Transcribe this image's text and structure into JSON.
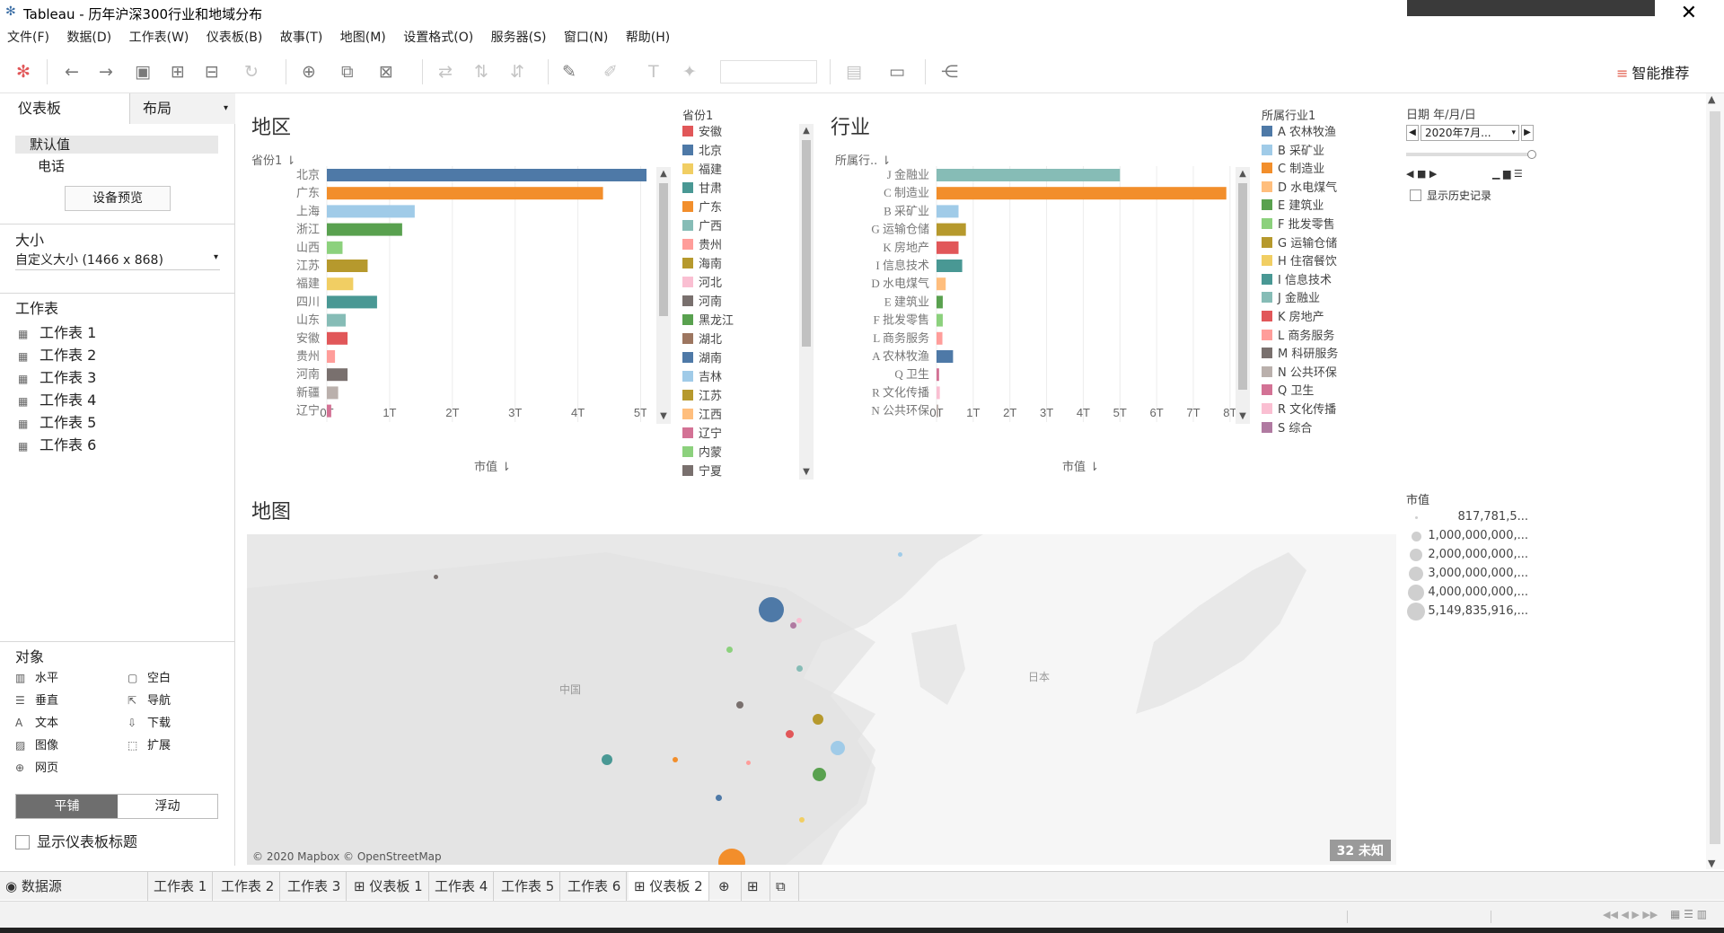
{
  "window": {
    "title": "Tableau - 历年沪深300行业和地域分布",
    "close": "✕"
  },
  "menu": [
    "文件(F)",
    "数据(D)",
    "工作表(W)",
    "仪表板(B)",
    "故事(T)",
    "地图(M)",
    "设置格式(O)",
    "服务器(S)",
    "窗口(N)",
    "帮助(H)"
  ],
  "toolbar": {
    "smart_label": "智能推荐"
  },
  "left": {
    "tab_dashboard": "仪表板",
    "tab_layout": "布局",
    "device_default": "默认值",
    "device_phone": "电话",
    "device_preview": "设备预览",
    "size_title": "大小",
    "size_value": "自定义大小 (1466 x 868)",
    "sheets_title": "工作表",
    "sheets": [
      "工作表 1",
      "工作表 2",
      "工作表 3",
      "工作表 4",
      "工作表 5",
      "工作表 6"
    ],
    "objects_title": "对象",
    "objects": [
      {
        "icon": "▥",
        "label": "水平"
      },
      {
        "icon": "▢",
        "label": "空白"
      },
      {
        "icon": "☰",
        "label": "垂直"
      },
      {
        "icon": "⇱",
        "label": "导航"
      },
      {
        "icon": "A",
        "label": "文本"
      },
      {
        "icon": "⇩",
        "label": "下载"
      },
      {
        "icon": "▨",
        "label": "图像"
      },
      {
        "icon": "⬚",
        "label": "扩展"
      },
      {
        "icon": "⊕",
        "label": "网页"
      }
    ],
    "tiled": "平铺",
    "floating": "浮动",
    "show_title": "显示仪表板标题"
  },
  "region": {
    "title": "地区",
    "axis_cat": "省份1",
    "axis_val": "市值",
    "legend_title": "省份1",
    "ticks": [
      "0T",
      "1T",
      "2T",
      "3T",
      "4T",
      "5T"
    ]
  },
  "industry": {
    "title": "行业",
    "axis_cat": "所属行..",
    "axis_val": "市值",
    "legend_title": "所属行业1",
    "ticks": [
      "0T",
      "1T",
      "2T",
      "3T",
      "4T",
      "5T",
      "6T",
      "7T",
      "8T"
    ]
  },
  "chart_data": [
    {
      "type": "bar",
      "title": "地区",
      "xlabel": "市值",
      "ylabel": "省份1",
      "xlim": [
        0,
        5.15
      ],
      "categories": [
        "北京",
        "广东",
        "上海",
        "浙江",
        "山西",
        "江苏",
        "福建",
        "四川",
        "山东",
        "安徽",
        "贵州",
        "河南",
        "新疆",
        "辽宁"
      ],
      "values": [
        5.15,
        4.4,
        1.4,
        1.2,
        0.25,
        0.65,
        0.42,
        0.8,
        0.3,
        0.33,
        0.13,
        0.33,
        0.18,
        0.07
      ],
      "colors": [
        "#4e79a7",
        "#f28e2b",
        "#a0cbe8",
        "#59a14f",
        "#8cd17d",
        "#b6992d",
        "#f1ce63",
        "#499894",
        "#86bcb6",
        "#e15759",
        "#ff9d9a",
        "#79706e",
        "#bab0ac",
        "#d37295"
      ]
    },
    {
      "type": "bar",
      "title": "行业",
      "xlabel": "市值",
      "ylabel": "所属行..",
      "xlim": [
        0,
        8.2
      ],
      "categories": [
        "J 金融业",
        "C 制造业",
        "B 采矿业",
        "G 运输仓储",
        "K 房地产",
        "I 信息技术",
        "D 水电煤气",
        "E 建筑业",
        "F 批发零售",
        "L 商务服务",
        "A 农林牧渔",
        "Q 卫生",
        "R 文化传播",
        "N 公共环保"
      ],
      "values": [
        5.0,
        7.9,
        0.6,
        0.8,
        0.6,
        0.7,
        0.25,
        0.17,
        0.17,
        0.16,
        0.45,
        0.07,
        0.09,
        0.03
      ],
      "colors": [
        "#86bcb6",
        "#f28e2b",
        "#a0cbe8",
        "#b6992d",
        "#e15759",
        "#499894",
        "#ffbe7d",
        "#59a14f",
        "#8cd17d",
        "#ff9d9a",
        "#4e79a7",
        "#d37295",
        "#fabfd2",
        "#bab0ac"
      ]
    }
  ],
  "region_legend": [
    {
      "label": "安徽",
      "color": "#e15759"
    },
    {
      "label": "北京",
      "color": "#4e79a7"
    },
    {
      "label": "福建",
      "color": "#f1ce63"
    },
    {
      "label": "甘肃",
      "color": "#499894"
    },
    {
      "label": "广东",
      "color": "#f28e2b"
    },
    {
      "label": "广西",
      "color": "#86bcb6"
    },
    {
      "label": "贵州",
      "color": "#ff9d9a"
    },
    {
      "label": "海南",
      "color": "#b6992d"
    },
    {
      "label": "河北",
      "color": "#fabfd2"
    },
    {
      "label": "河南",
      "color": "#79706e"
    },
    {
      "label": "黑龙江",
      "color": "#59a14f"
    },
    {
      "label": "湖北",
      "color": "#9d7660"
    },
    {
      "label": "湖南",
      "color": "#4e79a7"
    },
    {
      "label": "吉林",
      "color": "#a0cbe8"
    },
    {
      "label": "江苏",
      "color": "#b6992d"
    },
    {
      "label": "江西",
      "color": "#ffbe7d"
    },
    {
      "label": "辽宁",
      "color": "#d37295"
    },
    {
      "label": "内蒙",
      "color": "#8cd17d"
    },
    {
      "label": "宁夏",
      "color": "#79706e"
    }
  ],
  "industry_legend": [
    {
      "label": "A 农林牧渔",
      "color": "#4e79a7"
    },
    {
      "label": "B 采矿业",
      "color": "#a0cbe8"
    },
    {
      "label": "C 制造业",
      "color": "#f28e2b"
    },
    {
      "label": "D 水电煤气",
      "color": "#ffbe7d"
    },
    {
      "label": "E 建筑业",
      "color": "#59a14f"
    },
    {
      "label": "F 批发零售",
      "color": "#8cd17d"
    },
    {
      "label": "G 运输仓储",
      "color": "#b6992d"
    },
    {
      "label": "H 住宿餐饮",
      "color": "#f1ce63"
    },
    {
      "label": "I 信息技术",
      "color": "#499894"
    },
    {
      "label": "J 金融业",
      "color": "#86bcb6"
    },
    {
      "label": "K 房地产",
      "color": "#e15759"
    },
    {
      "label": "L 商务服务",
      "color": "#ff9d9a"
    },
    {
      "label": "M 科研服务",
      "color": "#79706e"
    },
    {
      "label": "N 公共环保",
      "color": "#bab0ac"
    },
    {
      "label": "Q 卫生",
      "color": "#d37295"
    },
    {
      "label": "R 文化传播",
      "color": "#fabfd2"
    },
    {
      "label": "S 综合",
      "color": "#b07aa1"
    }
  ],
  "date_filter": {
    "title": "日期 年/月/日",
    "value": "2020年7月...",
    "show_history": "显示历史记录"
  },
  "map": {
    "title": "地图",
    "copyright": "© 2020 Mapbox © OpenStreetMap",
    "unknown": "32 未知",
    "label_china": "中国",
    "label_japan": "日本"
  },
  "size_legend": {
    "title": "市值",
    "items": [
      "817,781,5...",
      "1,000,000,000,...",
      "2,000,000,000,...",
      "3,000,000,000,...",
      "4,000,000,000,...",
      "5,149,835,916,..."
    ]
  },
  "bottom_tabs": [
    "数据源",
    "工作表 1",
    "工作表 2",
    "工作表 3",
    "仪表板 1",
    "工作表 4",
    "工作表 5",
    "工作表 6",
    "仪表板 2"
  ]
}
